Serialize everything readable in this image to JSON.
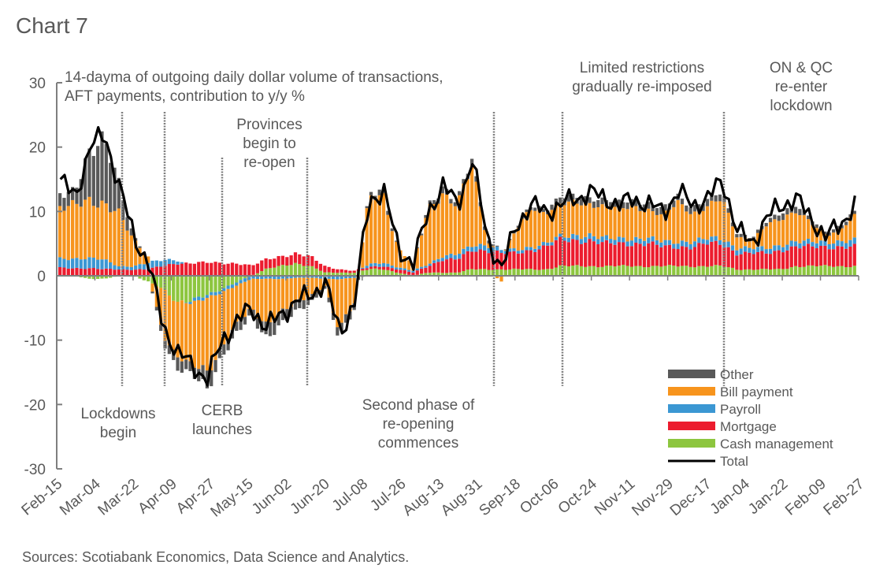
{
  "chart_data": {
    "type": "bar",
    "subtype": "stacked-bar-with-line",
    "title": "Chart 7",
    "subtitle": "14-day ma of outgoing daily dollar volume of transactions, AFT payments, contribution to y/y %",
    "subtitle_lines": [
      "14-dayma of outgoing daily dollar volume of transactions,",
      "AFT payments, contribution to y/y %"
    ],
    "xlabel": "",
    "ylabel": "",
    "ylim": [
      -30,
      30
    ],
    "yticks": [
      30,
      20,
      10,
      0,
      -10,
      -20,
      -30
    ],
    "xticks": [
      "Feb-15",
      "Mar-04",
      "Mar-22",
      "Apr-09",
      "Apr-27",
      "May-15",
      "Jun-02",
      "Jun-20",
      "Jul-08",
      "Jul-26",
      "Aug-13",
      "Aug-31",
      "Sep-18",
      "Oct-06",
      "Oct-24",
      "Nov-11",
      "Nov-29",
      "Dec-17",
      "Jan-04",
      "Jan-22",
      "Feb-09",
      "Feb-27"
    ],
    "grid": false,
    "legend_position": "bottom-right",
    "source": "Sources: Scotiabank Economics, Data Science and Analytics.",
    "colors": {
      "Other": "#595959",
      "Bill payment": "#f7941d",
      "Payroll": "#3b97d3",
      "Mortgage": "#ec1c2e",
      "Cash management": "#8dc63f",
      "Total": "#000000"
    },
    "legend": [
      {
        "name": "Other",
        "kind": "bar"
      },
      {
        "name": "Bill payment",
        "kind": "bar"
      },
      {
        "name": "Payroll",
        "kind": "bar"
      },
      {
        "name": "Mortgage",
        "kind": "bar"
      },
      {
        "name": "Cash management",
        "kind": "bar"
      },
      {
        "name": "Total",
        "kind": "line"
      }
    ],
    "annotations": [
      {
        "id": "lockdowns",
        "lines": [
          "Lockdowns",
          "begin"
        ],
        "date": "Mar-15",
        "position": "below"
      },
      {
        "id": "cerb",
        "lines": [
          "CERB",
          "launches"
        ],
        "date": "Apr-06",
        "position": "below"
      },
      {
        "id": "reopen",
        "lines": [
          "Provinces",
          "begin to",
          "re-open"
        ],
        "date_range": [
          "May-04",
          "Jun-12"
        ],
        "position": "above"
      },
      {
        "id": "second-phase",
        "lines": [
          "Second phase of",
          "re-opening",
          "commences"
        ],
        "date": "Sep-09",
        "position": "below"
      },
      {
        "id": "restrictions",
        "lines": [
          "Limited restrictions",
          "gradually re-imposed"
        ],
        "date_range": [
          "Oct-08",
          "Dec-25"
        ],
        "position": "above"
      },
      {
        "id": "ON-QC",
        "lines": [
          "ON & QC",
          "re-enter",
          "lockdown"
        ],
        "date": "Dec-26",
        "position": "above"
      }
    ],
    "anchors_weekly": {
      "description": "Approximate weekly readings (contribution to y/y %) estimated from the chart",
      "dates": [
        "Feb-15",
        "Feb-22",
        "Mar-01",
        "Mar-08",
        "Mar-15",
        "Mar-22",
        "Mar-29",
        "Apr-05",
        "Apr-12",
        "Apr-19",
        "Apr-26",
        "May-03",
        "May-10",
        "May-17",
        "May-24",
        "May-31",
        "Jun-07",
        "Jun-14",
        "Jun-21",
        "Jun-28",
        "Jul-05",
        "Jul-12",
        "Jul-19",
        "Jul-26",
        "Aug-02",
        "Aug-09",
        "Aug-16",
        "Aug-23",
        "Aug-30",
        "Sep-06",
        "Sep-13",
        "Sep-20",
        "Sep-27",
        "Oct-04",
        "Oct-11",
        "Oct-18",
        "Oct-25",
        "Nov-01",
        "Nov-08",
        "Nov-15",
        "Nov-22",
        "Nov-29",
        "Dec-06",
        "Dec-13",
        "Dec-20",
        "Dec-27",
        "Jan-03",
        "Jan-10",
        "Jan-17",
        "Jan-24",
        "Jan-31",
        "Feb-07",
        "Feb-14",
        "Feb-21",
        "Feb-28"
      ],
      "series": [
        {
          "name": "Total",
          "values": [
            15,
            12,
            20,
            22,
            14,
            6,
            2,
            -8,
            -12,
            -14,
            -16,
            -10,
            -7,
            -5,
            -8,
            -6,
            -4,
            -3,
            -1,
            -9,
            -4,
            12,
            13,
            4,
            2,
            10,
            14,
            11,
            18,
            6,
            1,
            8,
            11,
            10,
            11,
            12,
            13,
            12,
            11,
            12,
            11,
            10,
            13,
            11,
            12,
            15,
            7,
            5,
            9,
            11,
            12,
            9,
            6,
            8,
            11
          ]
        },
        {
          "name": "Cash management",
          "values": [
            0,
            0,
            -0.5,
            -0.5,
            0,
            0,
            -1,
            -2,
            -4,
            -4,
            -3,
            -2,
            -1,
            0,
            1,
            1.5,
            2,
            1.5,
            0.5,
            0.5,
            0.5,
            1,
            1,
            0.5,
            0,
            0.5,
            0.5,
            0.5,
            1,
            1,
            1,
            1,
            1,
            1,
            1.5,
            1.5,
            1.5,
            1.5,
            1.5,
            1.5,
            1.5,
            1.5,
            1.5,
            1.5,
            1.5,
            1.5,
            1,
            1,
            1,
            1,
            1.5,
            1.5,
            1.5,
            1.5,
            1.5
          ]
        },
        {
          "name": "Mortgage",
          "values": [
            1.2,
            1.2,
            1.2,
            1,
            1,
            1,
            1,
            1.5,
            2,
            2,
            2,
            2,
            2,
            1.5,
            1.5,
            1.5,
            1.5,
            1.5,
            1,
            0.5,
            0.3,
            0.3,
            0.5,
            0.5,
            0.5,
            1,
            2,
            2,
            3,
            3,
            2.5,
            2.5,
            3,
            3.5,
            4,
            4,
            4,
            3.5,
            3.5,
            3.5,
            3.5,
            3,
            3,
            3,
            3.5,
            3.5,
            2.5,
            2.5,
            2.5,
            3,
            3,
            3,
            3,
            3,
            3
          ]
        },
        {
          "name": "Payroll",
          "values": [
            1.5,
            1.5,
            1.5,
            1.5,
            0.5,
            0.5,
            1,
            1,
            0.5,
            -0.5,
            -0.5,
            -0.5,
            -0.5,
            -0.5,
            -0.5,
            -0.5,
            -0.3,
            -0.3,
            -0.5,
            -0.5,
            -0.3,
            0.5,
            0.5,
            0.3,
            0.3,
            0.3,
            0.5,
            0.8,
            0.8,
            0.8,
            0.5,
            0.5,
            0.5,
            0.5,
            0.5,
            0.8,
            0.8,
            0.8,
            0.8,
            0.8,
            0.8,
            0.8,
            0.8,
            0.8,
            0.8,
            0.8,
            0.8,
            0.8,
            0.8,
            0.8,
            0.8,
            0.8,
            0.8,
            0.8,
            1
          ]
        },
        {
          "name": "Bill payment",
          "values": [
            8,
            8,
            9,
            9,
            8,
            4,
            1,
            -7,
            -8,
            -10,
            -12,
            -8,
            -6,
            -5,
            -7,
            -5,
            -4,
            -3,
            -1,
            -8,
            -4,
            10,
            10,
            3,
            1,
            8,
            10,
            8,
            12,
            1,
            -1,
            3,
            6,
            5,
            5,
            5,
            5,
            5,
            4.5,
            5,
            4.5,
            4,
            6,
            4.5,
            5,
            6,
            2,
            1,
            3.5,
            4,
            5,
            3,
            1,
            2,
            4
          ]
        },
        {
          "name": "Other",
          "values": [
            2,
            2,
            8,
            10,
            4.5,
            0.5,
            0,
            -1,
            -2,
            -1.5,
            -2.5,
            -1.5,
            -1.5,
            -1,
            -2,
            -2,
            -1.5,
            -1,
            -0.5,
            -1.5,
            -1,
            0.5,
            1,
            0,
            0,
            0.5,
            1,
            0.5,
            1,
            0.5,
            0,
            0.3,
            0.5,
            0.5,
            1,
            1,
            1,
            1,
            1,
            1,
            1,
            1,
            1,
            1,
            1,
            1,
            0.5,
            0.5,
            0.5,
            1,
            1,
            0.5,
            0.5,
            0.5,
            0.5
          ]
        }
      ]
    }
  }
}
